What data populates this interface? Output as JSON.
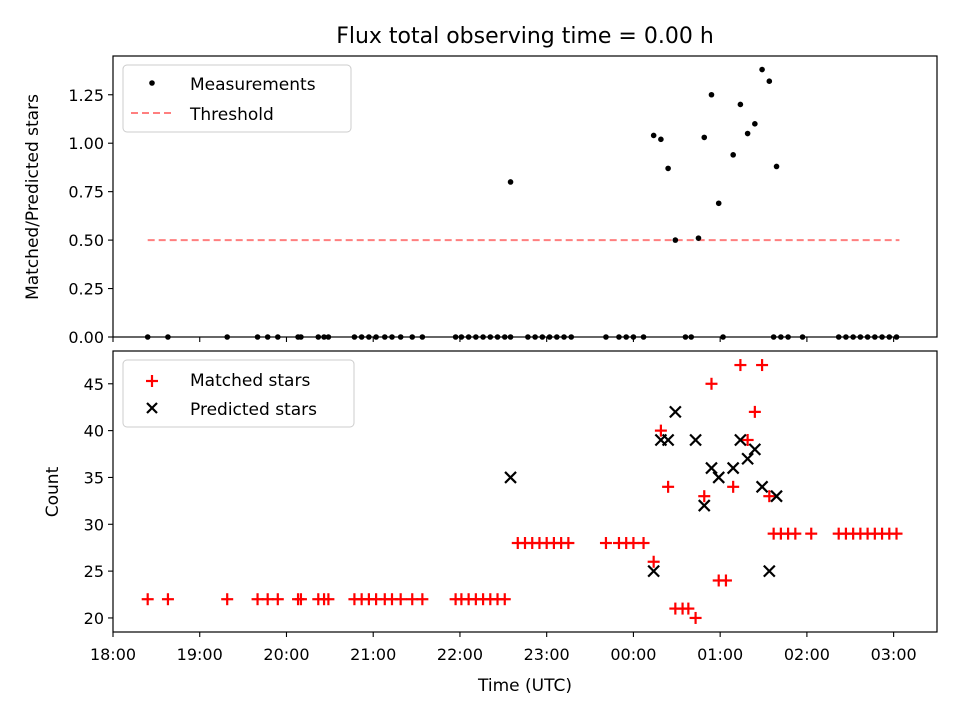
{
  "figure": {
    "title": "Flux total observing time = 0.00 h"
  },
  "chart_data": [
    {
      "type": "scatter",
      "xlabel": "",
      "ylabel": "Matched/Predicted stars",
      "x_range": [
        "18:00",
        "03:30"
      ],
      "ylim": [
        0,
        1.45
      ],
      "yticks": [
        0.0,
        0.25,
        0.5,
        0.75,
        1.0,
        1.25
      ],
      "ytick_labels": [
        "0.00",
        "0.25",
        "0.50",
        "0.75",
        "1.00",
        "1.25"
      ],
      "legend": "top-left",
      "legend_entries": [
        {
          "label": "Measurements",
          "marker": "dot",
          "color": "#000000"
        },
        {
          "label": "Threshold",
          "marker": "dashed-line",
          "color": "#ff7f7f"
        }
      ],
      "series": [
        {
          "name": "Measurements",
          "color": "#000000",
          "points": [
            [
              "18:24",
              0
            ],
            [
              "18:38",
              0
            ],
            [
              "19:19",
              0
            ],
            [
              "19:40",
              0
            ],
            [
              "19:47",
              0
            ],
            [
              "19:54",
              0
            ],
            [
              "20:08",
              0
            ],
            [
              "20:10",
              0
            ],
            [
              "20:22",
              0
            ],
            [
              "20:26",
              0
            ],
            [
              "20:29",
              0
            ],
            [
              "20:47",
              0
            ],
            [
              "20:52",
              0
            ],
            [
              "20:57",
              0
            ],
            [
              "21:02",
              0
            ],
            [
              "21:08",
              0
            ],
            [
              "21:13",
              0
            ],
            [
              "21:19",
              0
            ],
            [
              "21:27",
              0
            ],
            [
              "21:34",
              0
            ],
            [
              "21:57",
              0
            ],
            [
              "22:01",
              0
            ],
            [
              "22:06",
              0
            ],
            [
              "22:11",
              0
            ],
            [
              "22:16",
              0
            ],
            [
              "22:21",
              0
            ],
            [
              "22:26",
              0
            ],
            [
              "22:31",
              0
            ],
            [
              "22:35",
              0
            ],
            [
              "22:47",
              0
            ],
            [
              "22:52",
              0
            ],
            [
              "22:57",
              0
            ],
            [
              "23:02",
              0
            ],
            [
              "23:07",
              0
            ],
            [
              "23:12",
              0
            ],
            [
              "23:17",
              0
            ],
            [
              "23:41",
              0
            ],
            [
              "23:50",
              0
            ],
            [
              "23:55",
              0
            ],
            [
              "24:00",
              0
            ],
            [
              "24:07",
              0
            ],
            [
              "24:36",
              0
            ],
            [
              "24:40",
              0
            ],
            [
              "25:02",
              0
            ],
            [
              "25:37",
              0
            ],
            [
              "25:42",
              0
            ],
            [
              "25:47",
              0
            ],
            [
              "25:57",
              0
            ],
            [
              "26:22",
              0
            ],
            [
              "26:27",
              0
            ],
            [
              "26:32",
              0
            ],
            [
              "26:37",
              0
            ],
            [
              "26:42",
              0
            ],
            [
              "26:47",
              0
            ],
            [
              "26:52",
              0
            ],
            [
              "26:57",
              0
            ],
            [
              "27:02",
              0
            ],
            [
              "22:35",
              0.8
            ],
            [
              "24:14",
              1.04
            ],
            [
              "24:19",
              1.02
            ],
            [
              "24:24",
              0.87
            ],
            [
              "24:29",
              0.5
            ],
            [
              "24:45",
              0.51
            ],
            [
              "24:49",
              1.03
            ],
            [
              "24:54",
              1.25
            ],
            [
              "24:59",
              0.69
            ],
            [
              "25:09",
              0.94
            ],
            [
              "25:14",
              1.2
            ],
            [
              "25:19",
              1.05
            ],
            [
              "25:24",
              1.1
            ],
            [
              "25:29",
              1.38
            ],
            [
              "25:34",
              1.32
            ],
            [
              "25:39",
              0.88
            ]
          ]
        },
        {
          "name": "Threshold",
          "color": "#ff7f7f",
          "y": 0.5,
          "x_start": "18:24",
          "x_end": "27:04"
        }
      ]
    },
    {
      "type": "scatter",
      "xlabel": "Time (UTC)",
      "ylabel": "Count",
      "x_range": [
        "18:00",
        "03:30"
      ],
      "xticks": [
        "18:00",
        "19:00",
        "20:00",
        "21:00",
        "22:00",
        "23:00",
        "00:00",
        "01:00",
        "02:00",
        "03:00"
      ],
      "ylim": [
        18.5,
        48.5
      ],
      "yticks": [
        20,
        25,
        30,
        35,
        40,
        45
      ],
      "ytick_labels": [
        "20",
        "25",
        "30",
        "35",
        "40",
        "45"
      ],
      "legend": "top-left",
      "legend_entries": [
        {
          "label": "Matched stars",
          "marker": "plus",
          "color": "#ff0000"
        },
        {
          "label": "Predicted stars",
          "marker": "x",
          "color": "#000000"
        }
      ],
      "series": [
        {
          "name": "Matched stars",
          "color": "#ff0000",
          "points": [
            [
              "18:24",
              22
            ],
            [
              "18:38",
              22
            ],
            [
              "19:19",
              22
            ],
            [
              "19:40",
              22
            ],
            [
              "19:47",
              22
            ],
            [
              "19:54",
              22
            ],
            [
              "20:08",
              22
            ],
            [
              "20:10",
              22
            ],
            [
              "20:22",
              22
            ],
            [
              "20:26",
              22
            ],
            [
              "20:29",
              22
            ],
            [
              "20:47",
              22
            ],
            [
              "20:52",
              22
            ],
            [
              "20:57",
              22
            ],
            [
              "21:02",
              22
            ],
            [
              "21:08",
              22
            ],
            [
              "21:13",
              22
            ],
            [
              "21:19",
              22
            ],
            [
              "21:27",
              22
            ],
            [
              "21:34",
              22
            ],
            [
              "21:57",
              22
            ],
            [
              "22:01",
              22
            ],
            [
              "22:06",
              22
            ],
            [
              "22:11",
              22
            ],
            [
              "22:16",
              22
            ],
            [
              "22:21",
              22
            ],
            [
              "22:26",
              22
            ],
            [
              "22:31",
              22
            ],
            [
              "22:40",
              28
            ],
            [
              "22:45",
              28
            ],
            [
              "22:50",
              28
            ],
            [
              "22:55",
              28
            ],
            [
              "23:00",
              28
            ],
            [
              "23:05",
              28
            ],
            [
              "23:10",
              28
            ],
            [
              "23:15",
              28
            ],
            [
              "23:41",
              28
            ],
            [
              "23:50",
              28
            ],
            [
              "23:55",
              28
            ],
            [
              "24:00",
              28
            ],
            [
              "24:07",
              28
            ],
            [
              "24:14",
              26
            ],
            [
              "24:19",
              40
            ],
            [
              "24:24",
              34
            ],
            [
              "24:29",
              21
            ],
            [
              "24:34",
              21
            ],
            [
              "24:38",
              21
            ],
            [
              "24:43",
              20
            ],
            [
              "24:49",
              33
            ],
            [
              "24:54",
              45
            ],
            [
              "24:59",
              24
            ],
            [
              "25:04",
              24
            ],
            [
              "25:09",
              34
            ],
            [
              "25:14",
              47
            ],
            [
              "25:19",
              39
            ],
            [
              "25:24",
              42
            ],
            [
              "25:29",
              47
            ],
            [
              "25:34",
              33
            ],
            [
              "25:37",
              29
            ],
            [
              "25:42",
              29
            ],
            [
              "25:47",
              29
            ],
            [
              "25:52",
              29
            ],
            [
              "26:03",
              29
            ],
            [
              "26:22",
              29
            ],
            [
              "26:27",
              29
            ],
            [
              "26:32",
              29
            ],
            [
              "26:37",
              29
            ],
            [
              "26:42",
              29
            ],
            [
              "26:47",
              29
            ],
            [
              "26:52",
              29
            ],
            [
              "26:57",
              29
            ],
            [
              "27:02",
              29
            ]
          ]
        },
        {
          "name": "Predicted stars",
          "color": "#000000",
          "points": [
            [
              "22:35",
              35
            ],
            [
              "24:14",
              25
            ],
            [
              "24:19",
              39
            ],
            [
              "24:24",
              39
            ],
            [
              "24:29",
              42
            ],
            [
              "24:43",
              39
            ],
            [
              "24:49",
              32
            ],
            [
              "24:54",
              36
            ],
            [
              "24:59",
              35
            ],
            [
              "25:09",
              36
            ],
            [
              "25:14",
              39
            ],
            [
              "25:19",
              37
            ],
            [
              "25:24",
              38
            ],
            [
              "25:29",
              34
            ],
            [
              "25:34",
              25
            ],
            [
              "25:39",
              33
            ]
          ]
        }
      ]
    }
  ]
}
